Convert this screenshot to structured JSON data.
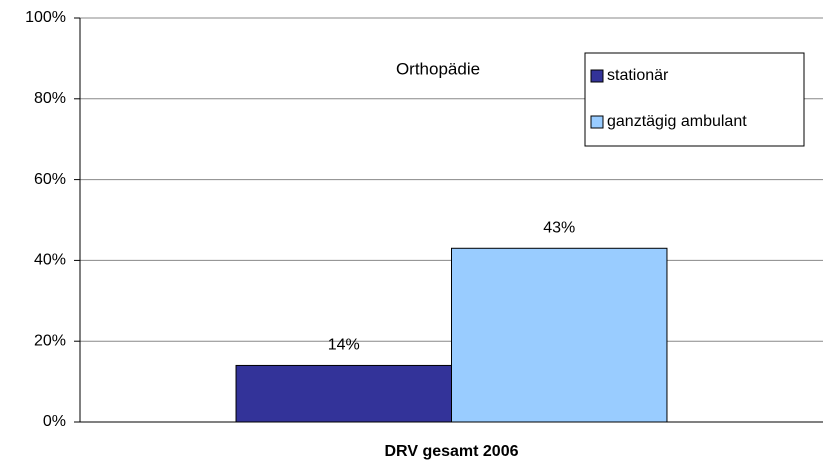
{
  "chart_data": {
    "type": "bar",
    "title": "Orthopädie",
    "categories": [
      "DRV gesamt 2006"
    ],
    "series": [
      {
        "name": "stationär",
        "color": "#333399",
        "values": [
          14
        ],
        "value_labels": [
          "14%"
        ]
      },
      {
        "name": "ganztägig ambulant",
        "color": "#99ccff",
        "values": [
          43
        ],
        "value_labels": [
          "43%"
        ]
      }
    ],
    "ylim": [
      0,
      100
    ],
    "yticks": [
      {
        "value": 0,
        "label": "0%"
      },
      {
        "value": 20,
        "label": "20%"
      },
      {
        "value": 40,
        "label": "40%"
      },
      {
        "value": 60,
        "label": "60%"
      },
      {
        "value": 80,
        "label": "80%"
      },
      {
        "value": 100,
        "label": "100%"
      }
    ],
    "grid": true,
    "legend": "top-right"
  }
}
